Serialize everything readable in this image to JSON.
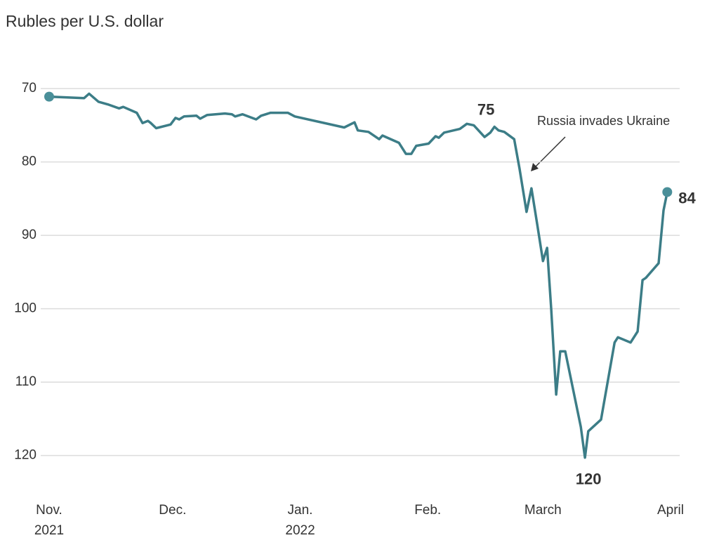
{
  "chart_data": {
    "type": "line",
    "title": "Rubles per U.S. dollar",
    "annotation": "Russia invades Ukraine",
    "x": [
      0,
      8.5,
      9.7,
      12,
      14.5,
      17,
      18,
      21.3,
      22.7,
      24,
      24.7,
      26,
      29.5,
      30.7,
      31.6,
      32.8,
      35.8,
      36.7,
      38.4,
      42.7,
      44.4,
      45.2,
      47,
      50.3,
      51.5,
      53.8,
      58,
      59.7,
      71.7,
      74.2,
      75,
      77.6,
      80.2,
      81,
      85,
      86.7,
      88,
      89.2,
      92.2,
      93.9,
      94.7,
      96,
      99.8,
      101.5,
      103.2,
      105.8,
      107.2,
      108.2,
      109.2,
      110.6,
      113,
      114.3,
      116,
      117.2,
      118.6,
      120,
      121,
      122,
      123.2,
      124.2,
      125.4,
      129.2,
      130.2,
      131,
      134.1,
      137.4,
      138.2,
      141.3,
      143,
      144.2,
      145,
      148.1,
      149.3,
      150.2
    ],
    "values": [
      71.1,
      71.3,
      70.7,
      71.8,
      72.2,
      72.7,
      72.5,
      73.3,
      74.7,
      74.4,
      74.7,
      75.4,
      74.9,
      74.0,
      74.2,
      73.8,
      73.7,
      74.1,
      73.6,
      73.4,
      73.5,
      73.8,
      73.5,
      74.2,
      73.7,
      73.3,
      73.3,
      73.8,
      75.3,
      74.6,
      75.7,
      75.9,
      76.9,
      76.4,
      77.4,
      78.9,
      78.9,
      77.8,
      77.5,
      76.5,
      76.7,
      76.0,
      75.5,
      74.8,
      75.0,
      76.6,
      76.0,
      75.2,
      75.7,
      75.9,
      76.9,
      80.9,
      86.8,
      83.6,
      88.5,
      93.5,
      91.7,
      100.0,
      111.7,
      105.8,
      105.8,
      116.1,
      120.3,
      116.7,
      115.1,
      104.6,
      103.9,
      104.6,
      103.1,
      96.1,
      95.8,
      93.8,
      86.6,
      84.1
    ],
    "value_labels": [
      null,
      null,
      null,
      null,
      null,
      null,
      null,
      null,
      null,
      null,
      null,
      null,
      null,
      null,
      null,
      null,
      null,
      null,
      null,
      null,
      null,
      null,
      null,
      null,
      null,
      null,
      null,
      null,
      null,
      null,
      null,
      null,
      null,
      null,
      null,
      null,
      null,
      null,
      null,
      null,
      null,
      null,
      null,
      null,
      null,
      null,
      null,
      "75",
      null,
      null,
      null,
      null,
      null,
      null,
      null,
      null,
      null,
      null,
      null,
      null,
      null,
      null,
      "120",
      null,
      null,
      null,
      null,
      null,
      null,
      null,
      null,
      null,
      null,
      "84"
    ],
    "color": "#3c7d87",
    "xlim": [
      -2,
      153
    ],
    "xticks": [
      {
        "value": 0,
        "label": "Nov.",
        "year": "2021"
      },
      {
        "value": 30,
        "label": "Dec."
      },
      {
        "value": 61,
        "label": "Jan.",
        "year": "2022"
      },
      {
        "value": 92,
        "label": "Feb."
      },
      {
        "value": 120,
        "label": "March"
      },
      {
        "value": 151,
        "label": "April"
      }
    ],
    "ylim": [
      125.4,
      67.5
    ],
    "y_inverted": true,
    "yticks": [
      70,
      80,
      90,
      100,
      110,
      120
    ],
    "grid": true
  }
}
